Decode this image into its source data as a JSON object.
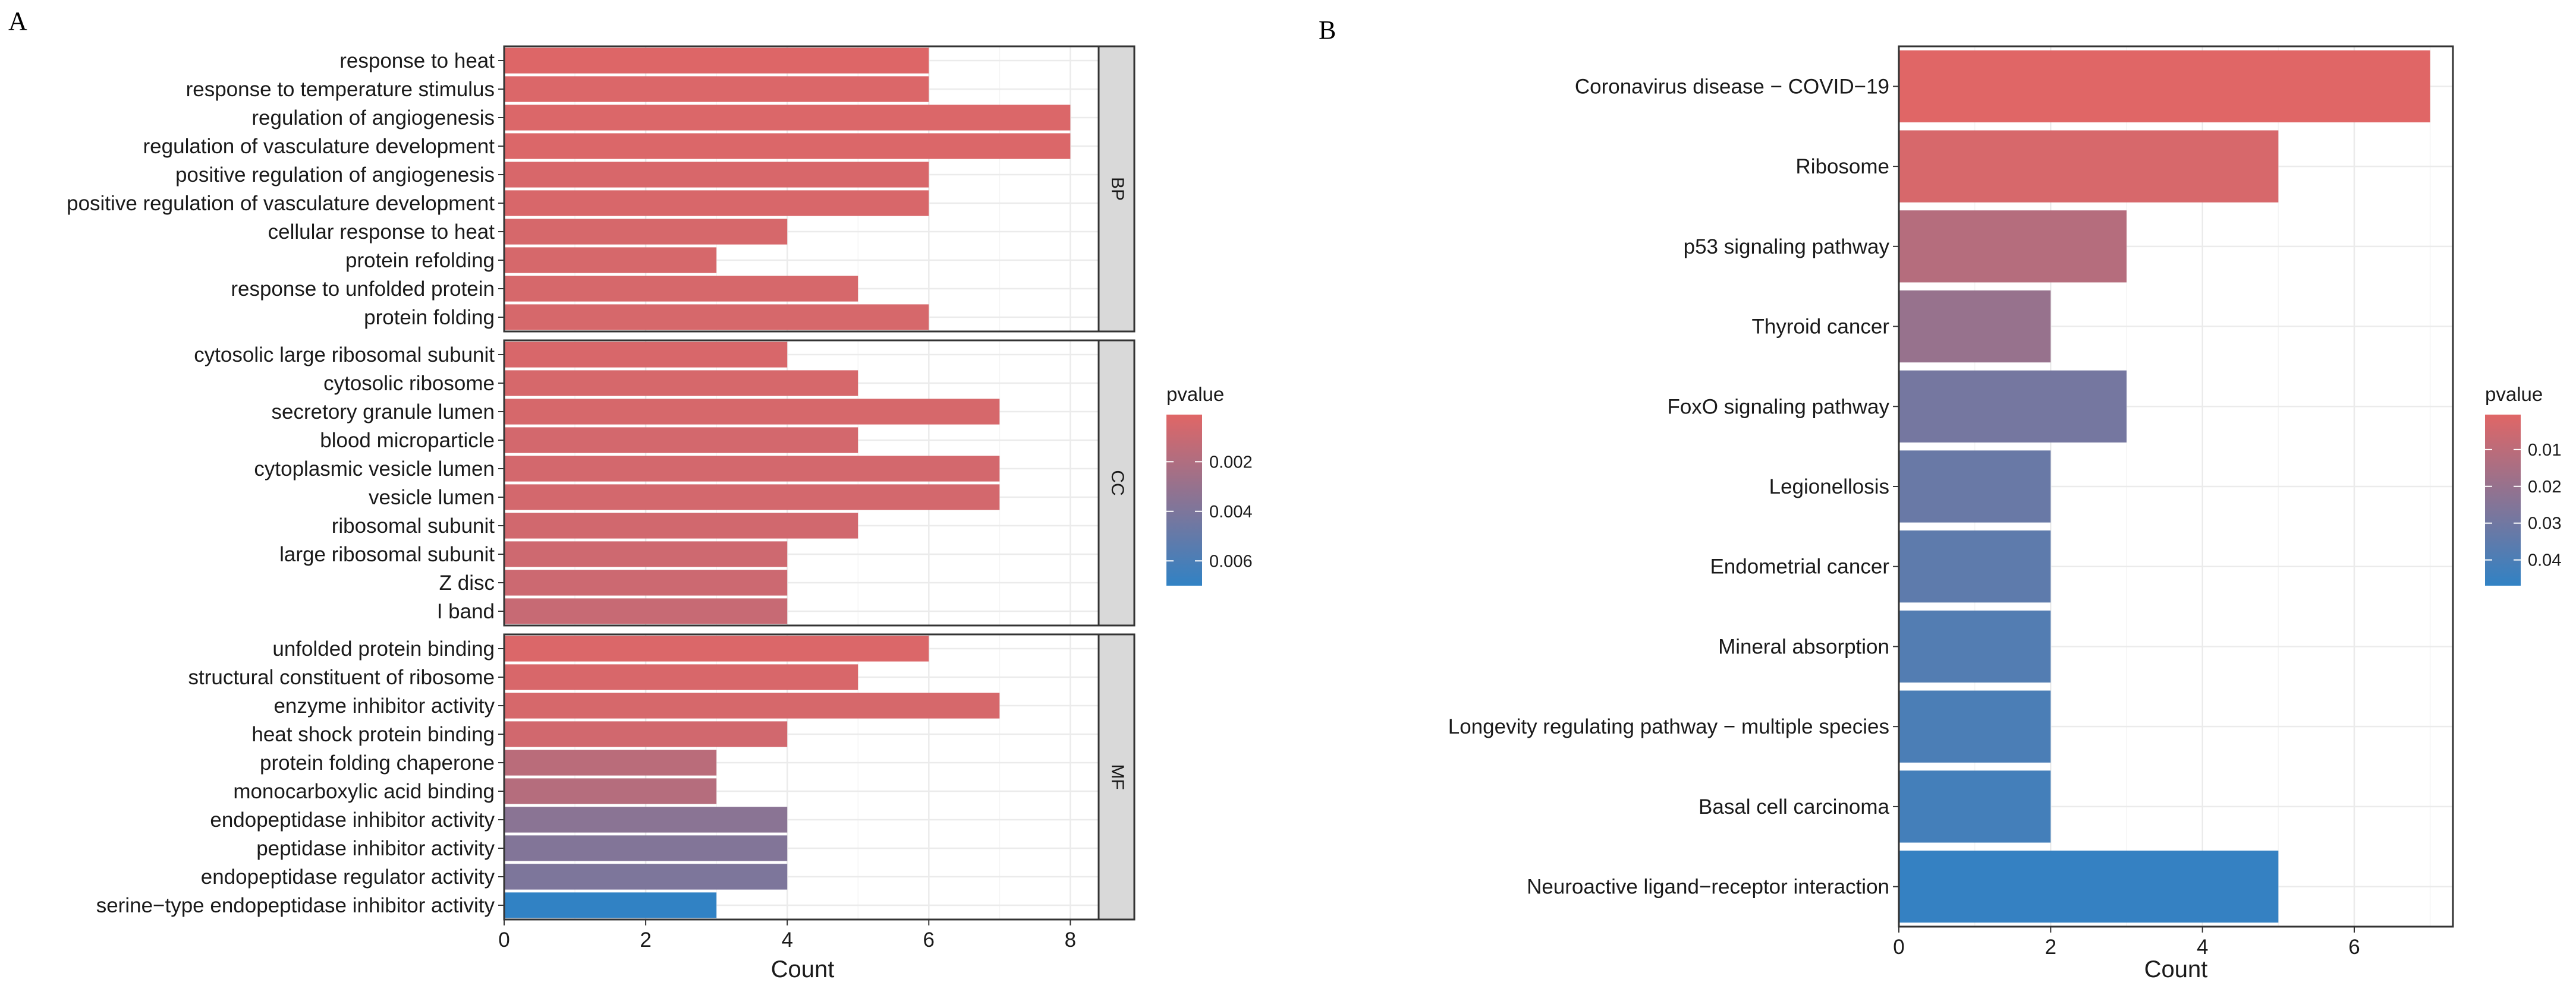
{
  "chart_data": [
    {
      "type": "bar",
      "orientation": "horizontal",
      "panel_label": "A",
      "xlabel": "Count",
      "xlim": [
        0,
        8.4
      ],
      "xticks": [
        0,
        2,
        4,
        6,
        8
      ],
      "facets": [
        {
          "name": "BP",
          "bars": [
            {
              "term": "response to heat",
              "count": 6,
              "pvalue": 0.0002
            },
            {
              "term": "response to temperature stimulus",
              "count": 6,
              "pvalue": 0.0003
            },
            {
              "term": "regulation of angiogenesis",
              "count": 8,
              "pvalue": 0.0003
            },
            {
              "term": "regulation of vasculature development",
              "count": 8,
              "pvalue": 0.0003
            },
            {
              "term": "positive regulation of angiogenesis",
              "count": 6,
              "pvalue": 0.0004
            },
            {
              "term": "positive regulation of vasculature development",
              "count": 6,
              "pvalue": 0.0004
            },
            {
              "term": "cellular response to heat",
              "count": 4,
              "pvalue": 0.0005
            },
            {
              "term": "protein refolding",
              "count": 3,
              "pvalue": 0.0005
            },
            {
              "term": "response to unfolded protein",
              "count": 5,
              "pvalue": 0.0005
            },
            {
              "term": "protein folding",
              "count": 6,
              "pvalue": 0.0005
            }
          ]
        },
        {
          "name": "CC",
          "bars": [
            {
              "term": "cytosolic large ribosomal subunit",
              "count": 4,
              "pvalue": 0.0004
            },
            {
              "term": "cytosolic ribosome",
              "count": 5,
              "pvalue": 0.0005
            },
            {
              "term": "secretory granule lumen",
              "count": 7,
              "pvalue": 0.0005
            },
            {
              "term": "blood microparticle",
              "count": 5,
              "pvalue": 0.0006
            },
            {
              "term": "cytoplasmic vesicle lumen",
              "count": 7,
              "pvalue": 0.0006
            },
            {
              "term": "vesicle lumen",
              "count": 7,
              "pvalue": 0.0006
            },
            {
              "term": "ribosomal subunit",
              "count": 5,
              "pvalue": 0.0007
            },
            {
              "term": "large ribosomal subunit",
              "count": 4,
              "pvalue": 0.0008
            },
            {
              "term": "Z disc",
              "count": 4,
              "pvalue": 0.0009
            },
            {
              "term": "I band",
              "count": 4,
              "pvalue": 0.0011
            }
          ]
        },
        {
          "name": "MF",
          "bars": [
            {
              "term": "unfolded protein binding",
              "count": 6,
              "pvalue": 0.0003
            },
            {
              "term": "structural constituent of ribosome",
              "count": 5,
              "pvalue": 0.0004
            },
            {
              "term": "enzyme inhibitor activity",
              "count": 7,
              "pvalue": 0.0005
            },
            {
              "term": "heat shock protein binding",
              "count": 4,
              "pvalue": 0.0007
            },
            {
              "term": "protein folding chaperone",
              "count": 3,
              "pvalue": 0.0016
            },
            {
              "term": "monocarboxylic acid binding",
              "count": 3,
              "pvalue": 0.0018
            },
            {
              "term": "endopeptidase inhibitor activity",
              "count": 4,
              "pvalue": 0.0035
            },
            {
              "term": "peptidase inhibitor activity",
              "count": 4,
              "pvalue": 0.0038
            },
            {
              "term": "endopeptidase regulator activity",
              "count": 4,
              "pvalue": 0.004
            },
            {
              "term": "serine−type endopeptidase inhibitor activity",
              "count": 3,
              "pvalue": 0.007
            }
          ]
        }
      ],
      "legend": {
        "title": "pvalue",
        "placement": "right",
        "range": [
          0.0001,
          0.007
        ],
        "ticks": [
          0.002,
          0.004,
          0.006
        ],
        "tick_labels": [
          "0.002",
          "0.004",
          "0.006"
        ]
      },
      "colors": {
        "low": "#e06666",
        "high": "#3182c4"
      }
    },
    {
      "type": "bar",
      "orientation": "horizontal",
      "panel_label": "B",
      "xlabel": "Count",
      "xlim": [
        0,
        7.3
      ],
      "xticks": [
        0,
        2,
        4,
        6
      ],
      "bars": [
        {
          "term": "Coronavirus disease − COVID−19",
          "count": 7,
          "pvalue": 0.0005
        },
        {
          "term": "Ribosome",
          "count": 5,
          "pvalue": 0.003
        },
        {
          "term": "p53 signaling pathway",
          "count": 3,
          "pvalue": 0.012
        },
        {
          "term": "Thyroid cancer",
          "count": 2,
          "pvalue": 0.02
        },
        {
          "term": "FoxO signaling pathway",
          "count": 3,
          "pvalue": 0.029
        },
        {
          "term": "Legionellosis",
          "count": 2,
          "pvalue": 0.032
        },
        {
          "term": "Endometrial cancer",
          "count": 2,
          "pvalue": 0.035
        },
        {
          "term": "Mineral absorption",
          "count": 2,
          "pvalue": 0.038
        },
        {
          "term": "Longevity regulating pathway − multiple species",
          "count": 2,
          "pvalue": 0.04
        },
        {
          "term": "Basal cell carcinoma",
          "count": 2,
          "pvalue": 0.042
        },
        {
          "term": "Neuroactive ligand−receptor interaction",
          "count": 5,
          "pvalue": 0.046
        }
      ],
      "legend": {
        "title": "pvalue",
        "placement": "right",
        "range": [
          0.0005,
          0.047
        ],
        "ticks": [
          0.01,
          0.02,
          0.03,
          0.04
        ],
        "tick_labels": [
          "0.01",
          "0.02",
          "0.03",
          "0.04"
        ]
      },
      "colors": {
        "low": "#e06666",
        "high": "#3182c4"
      }
    }
  ]
}
